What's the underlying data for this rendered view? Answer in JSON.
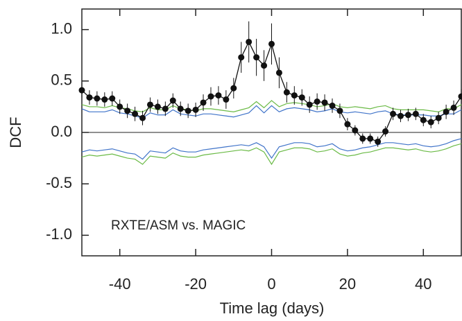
{
  "chart_data": {
    "type": "line",
    "annotation": "RXTE/ASM vs. MAGIC",
    "x_label": "Time lag (days)",
    "y_label": "DCF",
    "xlim": [
      -50,
      50
    ],
    "ylim": [
      -1.2,
      1.2
    ],
    "xticks": [
      -40,
      -20,
      0,
      20,
      40
    ],
    "yticks": [
      {
        "value": 1,
        "label": "1.0"
      },
      {
        "value": 0.5,
        "label": "0.5"
      },
      {
        "value": 0,
        "label": "0.0"
      },
      {
        "value": -0.5,
        "label": "-0.5"
      },
      {
        "value": -1,
        "label": "-1.0"
      }
    ],
    "reference_line": 0,
    "x": [
      -50,
      -48,
      -46,
      -44,
      -42,
      -40,
      -38,
      -36,
      -34,
      -32,
      -30,
      -28,
      -26,
      -24,
      -22,
      -20,
      -18,
      -16,
      -14,
      -12,
      -10,
      -8,
      -6,
      -4,
      -2,
      0,
      2,
      4,
      6,
      8,
      10,
      12,
      14,
      16,
      18,
      20,
      22,
      24,
      26,
      28,
      30,
      32,
      34,
      36,
      38,
      40,
      42,
      44,
      46,
      48,
      50
    ],
    "series": [
      {
        "color": "#6aba45",
        "values": [
          0.27,
          0.25,
          0.25,
          0.24,
          0.26,
          0.24,
          0.23,
          0.21,
          0.2,
          0.24,
          0.22,
          0.22,
          0.26,
          0.23,
          0.22,
          0.21,
          0.23,
          0.23,
          0.22,
          0.21,
          0.2,
          0.22,
          0.24,
          0.3,
          0.24,
          0.31,
          0.25,
          0.28,
          0.29,
          0.28,
          0.27,
          0.25,
          0.26,
          0.28,
          0.25,
          0.24,
          0.25,
          0.24,
          0.23,
          0.25,
          0.26,
          0.23,
          0.22,
          0.22,
          0.22,
          0.22,
          0.21,
          0.2,
          0.23,
          0.23,
          0.27
        ]
      },
      {
        "color": "#3f73c9",
        "values": [
          0.23,
          0.2,
          0.2,
          0.2,
          0.22,
          0.19,
          0.18,
          0.16,
          0.14,
          0.19,
          0.17,
          0.17,
          0.22,
          0.18,
          0.17,
          0.16,
          0.18,
          0.18,
          0.17,
          0.16,
          0.15,
          0.17,
          0.19,
          0.26,
          0.19,
          0.26,
          0.2,
          0.23,
          0.24,
          0.23,
          0.22,
          0.2,
          0.21,
          0.23,
          0.2,
          0.19,
          0.2,
          0.19,
          0.18,
          0.2,
          0.21,
          0.18,
          0.17,
          0.17,
          0.17,
          0.17,
          0.16,
          0.16,
          0.18,
          0.18,
          0.22
        ]
      },
      {
        "color": "#3f73c9",
        "values": [
          -0.19,
          -0.17,
          -0.18,
          -0.17,
          -0.16,
          -0.18,
          -0.2,
          -0.21,
          -0.26,
          -0.18,
          -0.19,
          -0.2,
          -0.15,
          -0.18,
          -0.19,
          -0.19,
          -0.17,
          -0.16,
          -0.15,
          -0.14,
          -0.13,
          -0.12,
          -0.13,
          -0.1,
          -0.14,
          -0.25,
          -0.14,
          -0.12,
          -0.1,
          -0.1,
          -0.11,
          -0.14,
          -0.13,
          -0.11,
          -0.16,
          -0.18,
          -0.17,
          -0.15,
          -0.14,
          -0.12,
          -0.1,
          -0.1,
          -0.11,
          -0.12,
          -0.11,
          -0.13,
          -0.14,
          -0.13,
          -0.11,
          -0.08,
          -0.06
        ]
      },
      {
        "color": "#6aba45",
        "values": [
          -0.24,
          -0.22,
          -0.23,
          -0.22,
          -0.21,
          -0.23,
          -0.25,
          -0.26,
          -0.31,
          -0.23,
          -0.24,
          -0.25,
          -0.2,
          -0.23,
          -0.24,
          -0.24,
          -0.22,
          -0.21,
          -0.2,
          -0.19,
          -0.18,
          -0.17,
          -0.18,
          -0.15,
          -0.19,
          -0.31,
          -0.19,
          -0.17,
          -0.15,
          -0.15,
          -0.16,
          -0.19,
          -0.18,
          -0.16,
          -0.21,
          -0.23,
          -0.22,
          -0.2,
          -0.19,
          -0.17,
          -0.15,
          -0.15,
          -0.16,
          -0.17,
          -0.16,
          -0.18,
          -0.19,
          -0.18,
          -0.16,
          -0.13,
          -0.11
        ]
      },
      {
        "color": "#111111",
        "markers": true,
        "values": [
          0.41,
          0.34,
          0.33,
          0.32,
          0.33,
          0.25,
          0.21,
          0.18,
          0.14,
          0.27,
          0.25,
          0.23,
          0.31,
          0.23,
          0.21,
          0.22,
          0.29,
          0.35,
          0.36,
          0.32,
          0.43,
          0.73,
          0.88,
          0.73,
          0.65,
          0.86,
          0.58,
          0.39,
          0.36,
          0.34,
          0.27,
          0.3,
          0.29,
          0.26,
          0.21,
          0.08,
          0.02,
          -0.06,
          -0.06,
          -0.09,
          0.01,
          0.18,
          0.16,
          0.17,
          0.18,
          0.12,
          0.1,
          0.14,
          0.2,
          0.24,
          0.35
        ],
        "errors": [
          0.07,
          0.07,
          0.07,
          0.07,
          0.07,
          0.07,
          0.07,
          0.07,
          0.07,
          0.07,
          0.07,
          0.07,
          0.07,
          0.07,
          0.07,
          0.07,
          0.08,
          0.09,
          0.09,
          0.09,
          0.1,
          0.15,
          0.2,
          0.18,
          0.15,
          0.2,
          0.15,
          0.1,
          0.09,
          0.08,
          0.08,
          0.08,
          0.08,
          0.07,
          0.07,
          0.06,
          0.05,
          0.05,
          0.05,
          0.05,
          0.05,
          0.06,
          0.06,
          0.06,
          0.06,
          0.06,
          0.06,
          0.06,
          0.07,
          0.07,
          0.07
        ]
      }
    ]
  }
}
